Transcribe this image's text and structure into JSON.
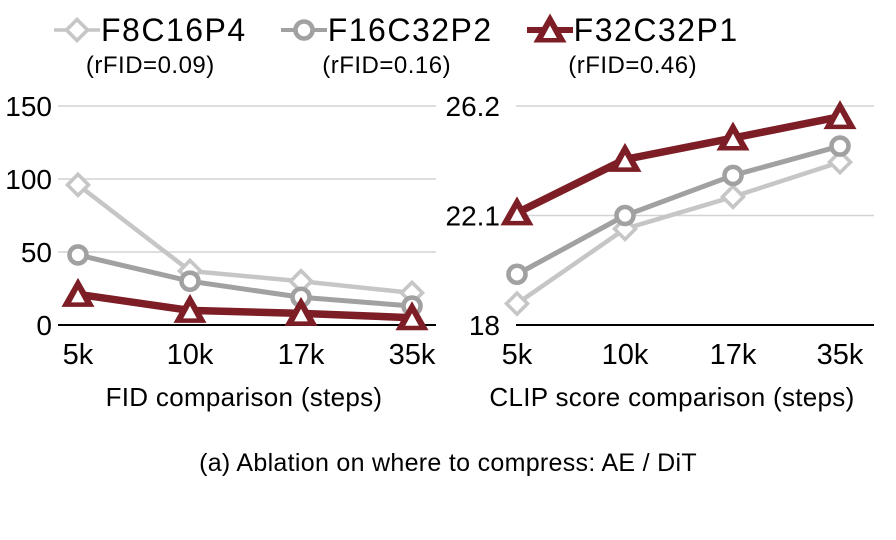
{
  "colors": {
    "axis": "#000000",
    "grid": "#d4d4d4",
    "diamond_series": "#c6c6c6",
    "circle_series": "#a1a1a1",
    "triangle_series": "#7d1d25",
    "text": "#000000",
    "marker_fill": "#ffffff"
  },
  "legend": {
    "items": [
      {
        "label": "F8C16P4",
        "sublabel": "(rFID=0.09)",
        "marker": "diamond",
        "color": "#c6c6c6"
      },
      {
        "label": "F16C32P2",
        "sublabel": "(rFID=0.16)",
        "marker": "circle",
        "color": "#a1a1a1"
      },
      {
        "label": "F32C32P1",
        "sublabel": "(rFID=0.46)",
        "marker": "triangle",
        "color": "#7d1d25"
      }
    ]
  },
  "caption": "(a) Ablation on where to compress: AE / DiT",
  "chart_data": [
    {
      "type": "line",
      "title": "FID comparison (steps)",
      "categories": [
        "5k",
        "10k",
        "17k",
        "35k"
      ],
      "yticks": [
        0,
        50,
        100,
        150
      ],
      "ylim": [
        0,
        150
      ],
      "grid": true,
      "legend_position": "top",
      "series": [
        {
          "name": "F8C16P4",
          "marker": "diamond",
          "color": "#c6c6c6",
          "values": [
            96,
            37,
            30,
            22
          ]
        },
        {
          "name": "F16C32P2",
          "marker": "circle",
          "color": "#a1a1a1",
          "values": [
            48,
            30,
            19,
            13
          ]
        },
        {
          "name": "F32C32P1",
          "marker": "triangle",
          "color": "#7d1d25",
          "values": [
            21,
            10,
            8,
            5
          ]
        }
      ]
    },
    {
      "type": "line",
      "title": "CLIP score comparison (steps)",
      "categories": [
        "5k",
        "10k",
        "17k",
        "35k"
      ],
      "yticks": [
        18,
        22.1,
        26.2
      ],
      "ylim": [
        18,
        26.2
      ],
      "grid": true,
      "legend_position": "top",
      "series": [
        {
          "name": "F8C16P4",
          "marker": "diamond",
          "color": "#c6c6c6",
          "values": [
            18.8,
            21.6,
            22.8,
            24.1
          ]
        },
        {
          "name": "F16C32P2",
          "marker": "circle",
          "color": "#a1a1a1",
          "values": [
            19.9,
            22.1,
            23.6,
            24.7
          ]
        },
        {
          "name": "F32C32P1",
          "marker": "triangle",
          "color": "#7d1d25",
          "values": [
            22.2,
            24.2,
            25.0,
            25.8
          ]
        }
      ]
    }
  ]
}
